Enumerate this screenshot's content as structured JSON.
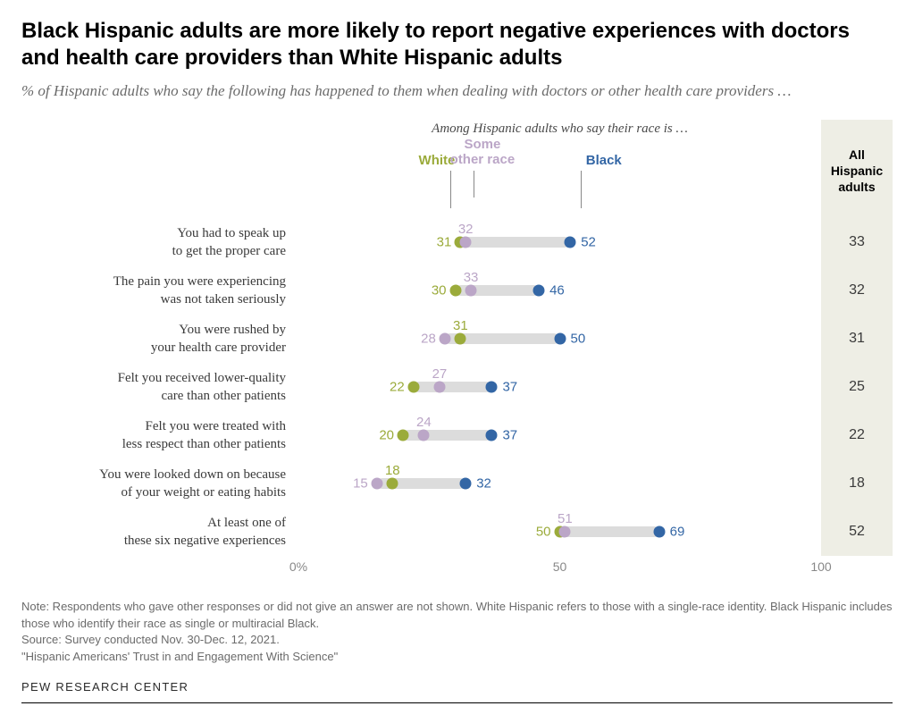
{
  "title": "Black Hispanic adults are more likely to report negative experiences with doctors and health care providers than White Hispanic adults",
  "subtitle": "% of Hispanic adults who say the following has happened to them when dealing with doctors or other health care providers …",
  "legend_title": "Among Hispanic adults who say their race is …",
  "totals_header": "All Hispanic adults",
  "series": {
    "white": {
      "label": "White",
      "color": "#9bab3b"
    },
    "other": {
      "label": "Some other race",
      "color": "#bba6c7"
    },
    "black": {
      "label": "Black",
      "color": "#3366a5"
    }
  },
  "track_color": "#dcdcdc",
  "chart": {
    "xlim": [
      0,
      100
    ],
    "ticks": [
      0,
      50,
      100
    ],
    "tick_labels": [
      "0%",
      "50",
      "100"
    ]
  },
  "rows": [
    {
      "label": "You had to speak up to get the proper care",
      "white": 31,
      "other": 32,
      "black": 52,
      "total": 33,
      "other_above": true
    },
    {
      "label": "The pain you were experiencing was not taken seriously",
      "white": 30,
      "other": 33,
      "black": 46,
      "total": 32,
      "other_above": true
    },
    {
      "label": "You were rushed by your health care provider",
      "white": 31,
      "other": 28,
      "black": 50,
      "total": 31,
      "other_above": false
    },
    {
      "label": "Felt you received lower-quality care than other patients",
      "white": 22,
      "other": 27,
      "black": 37,
      "total": 25,
      "other_above": true
    },
    {
      "label": "Felt you were treated with less respect than other patients",
      "white": 20,
      "other": 24,
      "black": 37,
      "total": 22,
      "other_above": true
    },
    {
      "label": "You were looked down on because of your weight or eating habits",
      "white": 18,
      "other": 15,
      "black": 32,
      "total": 18,
      "other_above": false
    },
    {
      "label": "At least one of these six negative experiences",
      "white": 50,
      "other": 51,
      "black": 69,
      "total": 52,
      "other_above": true
    }
  ],
  "notes": [
    "Note: Respondents who gave other responses or did not give an answer are not shown. White Hispanic refers to those with a single-race identity. Black Hispanic includes those who identify their race as single or multiracial Black.",
    "Source: Survey conducted Nov. 30-Dec. 12, 2021.",
    "\"Hispanic Americans' Trust in and Engagement With Science\""
  ],
  "footer": "PEW RESEARCH CENTER"
}
